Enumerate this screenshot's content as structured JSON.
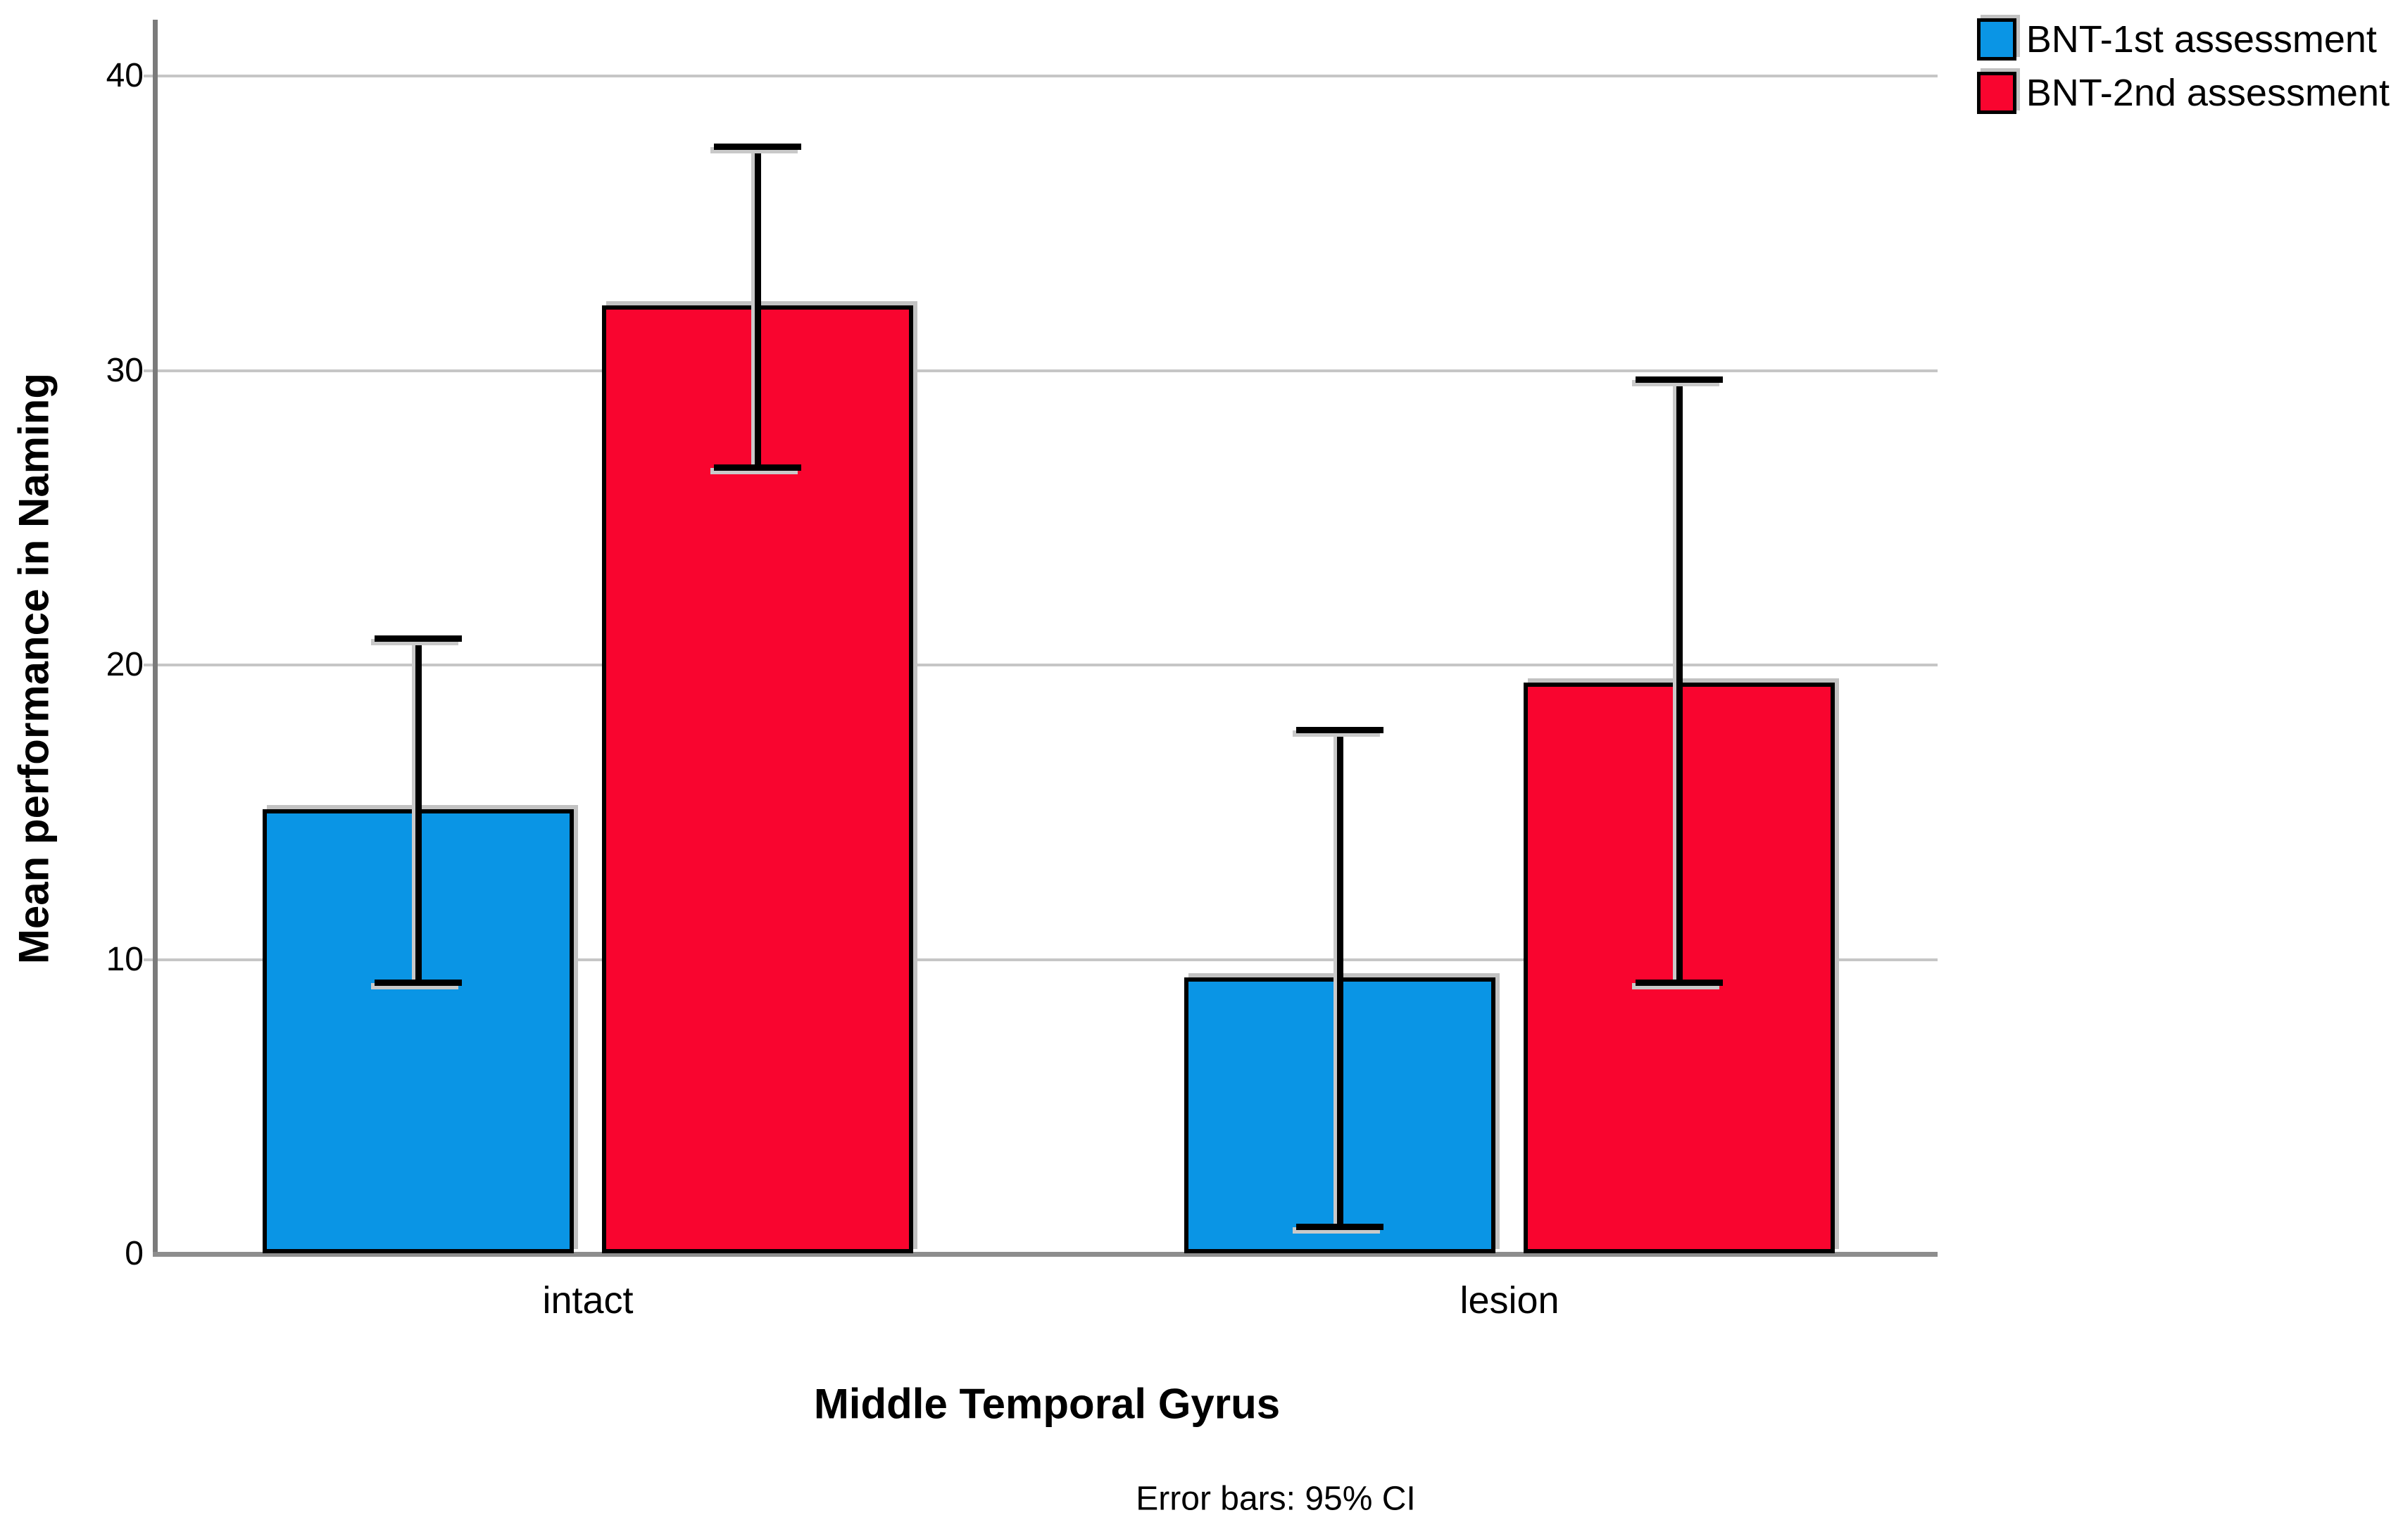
{
  "chart_data": {
    "type": "bar",
    "title": "",
    "xlabel": "Middle Temporal Gyrus",
    "ylabel": "Mean performance in Naming",
    "footnote": "Error bars: 95% CI",
    "categories": [
      "intact",
      "lesion"
    ],
    "series": [
      {
        "name": "BNT-1st assessment",
        "color": "#0a95e5",
        "values": [
          15.1,
          9.4
        ],
        "ci_low": [
          9.2,
          0.9
        ],
        "ci_high": [
          20.9,
          17.8
        ]
      },
      {
        "name": "BNT-2nd assessment",
        "color": "#f9052f",
        "values": [
          32.2,
          19.4
        ],
        "ci_low": [
          26.7,
          9.2
        ],
        "ci_high": [
          37.6,
          29.7
        ]
      }
    ],
    "y_ticks": [
      0,
      10,
      20,
      30,
      40
    ],
    "ylim": [
      0,
      41.9
    ],
    "grid": "horizontal",
    "legend_position": "top-right",
    "error_bars": "95% CI"
  },
  "style_colors": {
    "bar_border": "#000000",
    "gridline": "#c6c6c6",
    "y_axis_line": "#7b7b7b",
    "baseline": "#8d8d8d",
    "shadow": "#c2c2c2",
    "text": "#000000",
    "background": "#ffffff",
    "series_blue": "#0a95e5",
    "series_red": "#f9052f"
  }
}
